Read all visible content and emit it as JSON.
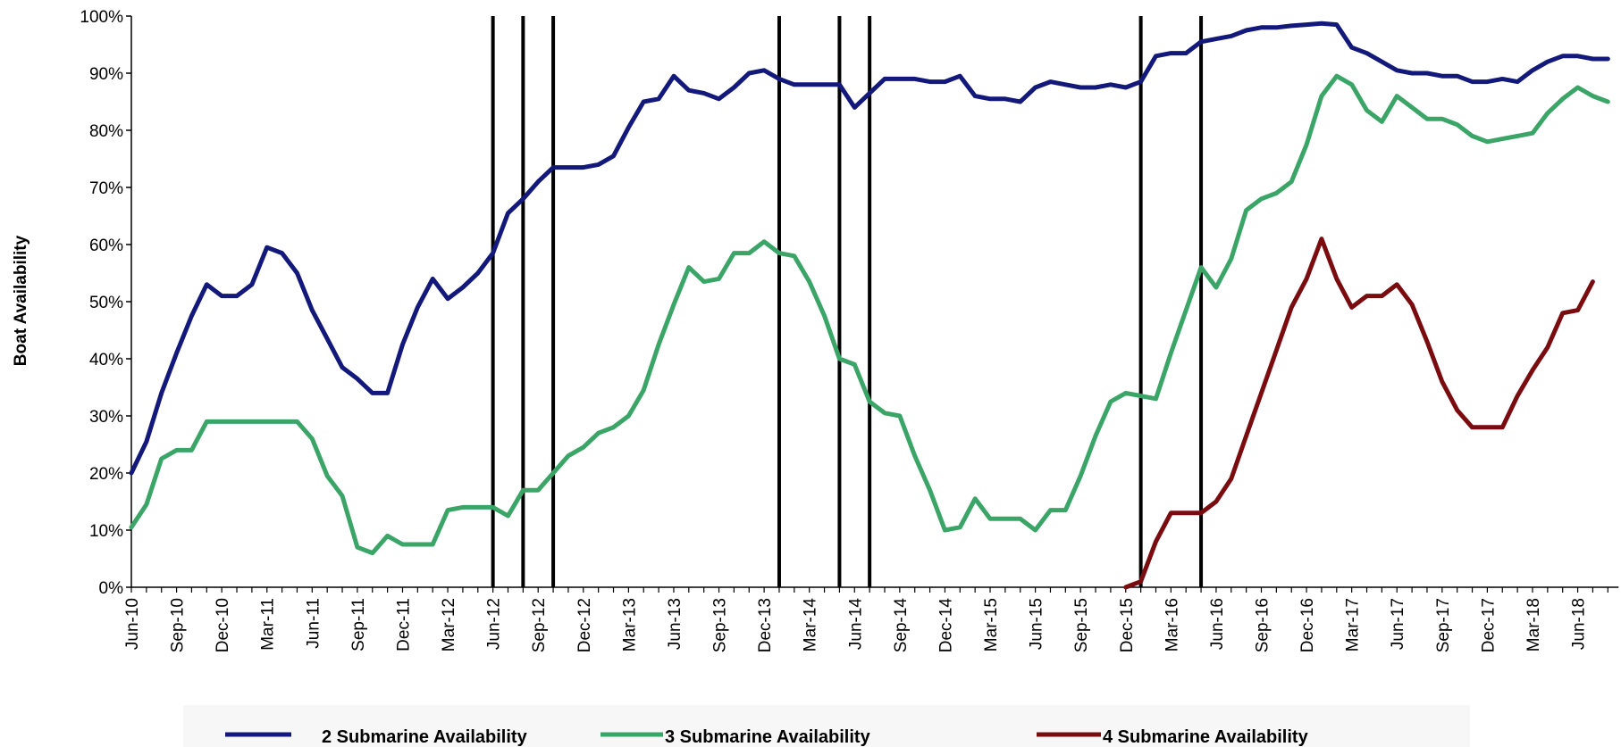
{
  "chart_data": {
    "type": "line",
    "title": "",
    "xlabel": "",
    "ylabel": "Boat Availability",
    "ylim": [
      0,
      100
    ],
    "y_ticks": [
      "0%",
      "10%",
      "20%",
      "30%",
      "40%",
      "50%",
      "60%",
      "70%",
      "80%",
      "90%",
      "100%"
    ],
    "x_tick_labels": [
      "Jun-10",
      "Sep-10",
      "Dec-10",
      "Mar-11",
      "Jun-11",
      "Sep-11",
      "Dec-11",
      "Mar-12",
      "Jun-12",
      "Sep-12",
      "Dec-12",
      "Mar-13",
      "Jun-13",
      "Sep-13",
      "Dec-13",
      "Mar-14",
      "Jun-14",
      "Sep-14",
      "Dec-14",
      "Mar-15",
      "Jun-15",
      "Sep-15",
      "Dec-15",
      "Mar-16",
      "Jun-16",
      "Sep-16",
      "Dec-16",
      "Mar-17",
      "Jun-17",
      "Sep-17",
      "Dec-17",
      "Mar-18",
      "Jun-18"
    ],
    "months": [
      "2010-06",
      "2010-07",
      "2010-08",
      "2010-09",
      "2010-10",
      "2010-11",
      "2010-12",
      "2011-01",
      "2011-02",
      "2011-03",
      "2011-04",
      "2011-05",
      "2011-06",
      "2011-07",
      "2011-08",
      "2011-09",
      "2011-10",
      "2011-11",
      "2011-12",
      "2012-01",
      "2012-02",
      "2012-03",
      "2012-04",
      "2012-05",
      "2012-06",
      "2012-07",
      "2012-08",
      "2012-09",
      "2012-10",
      "2012-11",
      "2012-12",
      "2013-01",
      "2013-02",
      "2013-03",
      "2013-04",
      "2013-05",
      "2013-06",
      "2013-07",
      "2013-08",
      "2013-09",
      "2013-10",
      "2013-11",
      "2013-12",
      "2014-01",
      "2014-02",
      "2014-03",
      "2014-04",
      "2014-05",
      "2014-06",
      "2014-07",
      "2014-08",
      "2014-09",
      "2014-10",
      "2014-11",
      "2014-12",
      "2015-01",
      "2015-02",
      "2015-03",
      "2015-04",
      "2015-05",
      "2015-06",
      "2015-07",
      "2015-08",
      "2015-09",
      "2015-10",
      "2015-11",
      "2015-12",
      "2016-01",
      "2016-02",
      "2016-03",
      "2016-04",
      "2016-05",
      "2016-06",
      "2016-07",
      "2016-08",
      "2016-09",
      "2016-10",
      "2016-11",
      "2016-12",
      "2017-01",
      "2017-02",
      "2017-03",
      "2017-04",
      "2017-05",
      "2017-06",
      "2017-07",
      "2017-08",
      "2017-09",
      "2017-10",
      "2017-11",
      "2017-12",
      "2018-01",
      "2018-02",
      "2018-03",
      "2018-04",
      "2018-05",
      "2018-06",
      "2018-07",
      "2018-08"
    ],
    "series": [
      {
        "name": "2 Submarine Availability",
        "color": "#13197a",
        "values": [
          20,
          25.5,
          34,
          41,
          47.5,
          53,
          51,
          51,
          53,
          59.5,
          58.5,
          55,
          48.5,
          43.5,
          38.5,
          36.5,
          34,
          34,
          42.5,
          49,
          54,
          50.5,
          52.5,
          55,
          58.5,
          65.5,
          68,
          71,
          73.5,
          73.5,
          73.5,
          74,
          75.5,
          80.5,
          85,
          85.5,
          89.5,
          87,
          86.5,
          85.5,
          87.5,
          90,
          90.5,
          89,
          88,
          88,
          88,
          88,
          84,
          86.5,
          89,
          89,
          89,
          88.5,
          88.5,
          89.5,
          86,
          85.5,
          85.5,
          85,
          87.5,
          88.5,
          88,
          87.5,
          87.5,
          88,
          87.5,
          88.5,
          93,
          93.5,
          93.5,
          95.5,
          96,
          96.5,
          97.5,
          98,
          98,
          98.3,
          98.5,
          98.7,
          98.5,
          94.5,
          93.5,
          92,
          90.5,
          90,
          90,
          89.5,
          89.5,
          88.5,
          88.5,
          89,
          88.5,
          90.5,
          92,
          93,
          93,
          92.5,
          92.5
        ]
      },
      {
        "name": "3 Submarine Availability",
        "color": "#3aa567",
        "values": [
          10.5,
          14.5,
          22.5,
          24,
          24,
          29,
          29,
          29,
          29,
          29,
          29,
          29,
          26,
          19.5,
          16,
          7,
          6,
          9,
          7.5,
          7.5,
          7.5,
          13.5,
          14,
          14,
          14,
          12.5,
          17,
          17,
          20,
          23,
          24.5,
          27,
          28,
          30,
          34.5,
          42.5,
          49.5,
          56,
          53.5,
          54,
          58.5,
          58.5,
          60.5,
          58.5,
          58,
          53.5,
          47.5,
          40,
          39,
          32.5,
          30.5,
          30,
          23,
          17,
          10,
          10.5,
          15.5,
          12,
          12,
          12,
          10,
          13.5,
          13.5,
          19.5,
          26.5,
          32.5,
          34,
          33.5,
          33,
          41,
          48.5,
          56,
          52.5,
          57.5,
          66,
          68,
          69,
          71,
          77.5,
          86,
          89.5,
          88,
          83.5,
          81.5,
          86,
          84,
          82,
          82,
          81,
          79,
          78,
          78.5,
          79,
          79.5,
          83,
          85.5,
          87.5,
          86,
          85
        ]
      },
      {
        "name": "4 Submarine Availability",
        "color": "#7a0c10",
        "start_month": "2015-12",
        "values": [
          0,
          1,
          8,
          13,
          13,
          13,
          15,
          19,
          26.5,
          34,
          41.5,
          49,
          54,
          61,
          54,
          49,
          51,
          51,
          53,
          49.5,
          43,
          36,
          31,
          28,
          28,
          28,
          33.5,
          38,
          42,
          48,
          48.5,
          53.5
        ]
      }
    ],
    "event_lines": [
      "2012-06",
      "2012-08",
      "2012-10",
      "2014-01",
      "2014-05",
      "2014-07",
      "2016-01",
      "2016-05"
    ],
    "event_line_color": "#000000",
    "grid": false,
    "legend_position": "bottom"
  }
}
